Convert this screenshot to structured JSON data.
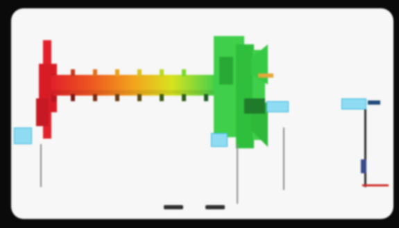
{
  "header": {
    "line1": "",
    "line2": "",
    "subtitle": ""
  },
  "labels": {
    "left_tag": "",
    "middle_tag": "",
    "right_tag_a": "",
    "right_tag_b": ""
  },
  "footer": {
    "caption_a": "",
    "caption_b": "",
    "caption_c": ""
  },
  "colors": {
    "hot": "#e2202a",
    "warm": "#f29a1e",
    "mid": "#d9e21f",
    "cool": "#3fcf4a",
    "accent": "#39b6e0"
  }
}
